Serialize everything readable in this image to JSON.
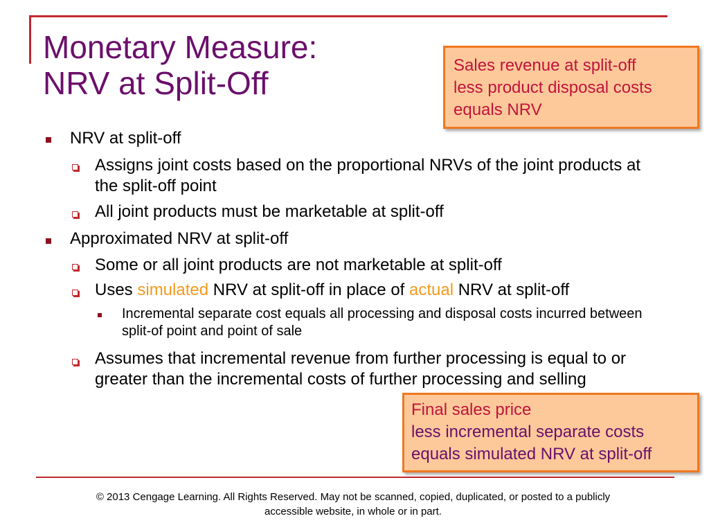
{
  "title": {
    "line1": "Monetary Measure:",
    "line2": "NRV at Split-Off"
  },
  "callout_top": {
    "line1": "Sales revenue at split-off",
    "line2": "less product disposal costs",
    "line3": "equals NRV"
  },
  "callout_bottom": {
    "line1": "Final sales price",
    "line2": "less incremental separate costs",
    "line3": "equals simulated NRV at split-off"
  },
  "bullets": {
    "b1": "NRV at split-off",
    "b1_1": "Assigns joint costs based on the proportional NRVs of the joint products at the split-off point",
    "b1_2": "All joint products must be marketable at split-off",
    "b2": "Approximated NRV at split-off",
    "b2_1": "Some or all joint products are not marketable at split-off",
    "b2_2": {
      "part1": "Uses ",
      "em1": "simulated",
      "part2": " NRV at split-off in place of  ",
      "em2": "actual",
      "part3": " NRV at split-off"
    },
    "b2_2_1": "Incremental separate cost equals all processing and disposal costs incurred between split-of point and point of sale",
    "b2_3": "Assumes that incremental revenue from further processing is equal to or greater than the incremental costs of further processing and selling"
  },
  "footer": {
    "line1": "© 2013 Cengage Learning.  All Rights Reserved.  May not be scanned, copied, duplicated, or posted to a publicly",
    "line2": "accessible website, in whole or in part."
  },
  "colors": {
    "title": "#6b0f6b",
    "accent_rule": "#c0282d",
    "callout_fill": "#fdc99a",
    "callout_border": "#f07820",
    "emphasis_orange": "#f39a1d"
  }
}
